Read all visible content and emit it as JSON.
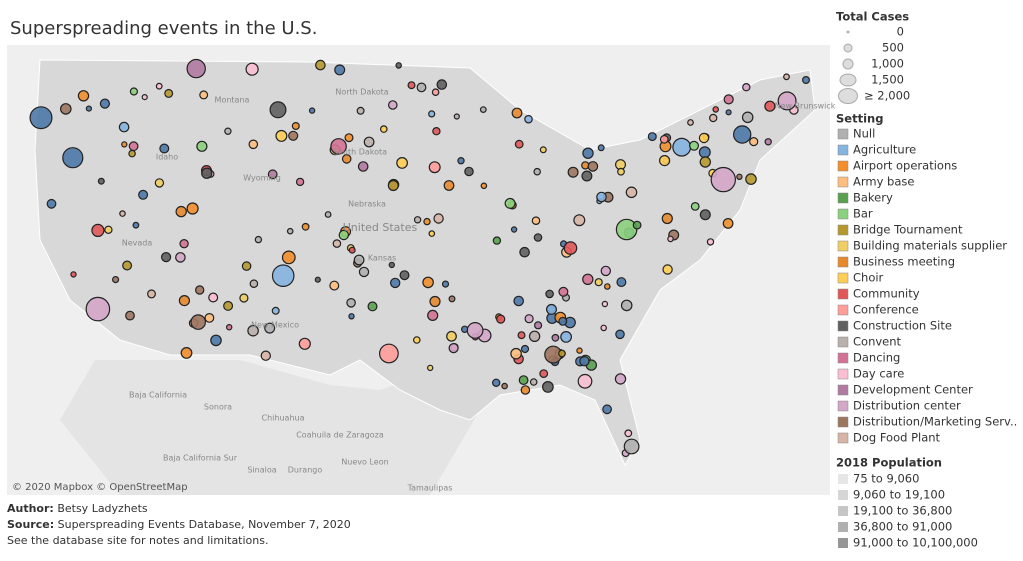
{
  "title": "Superspreading events in the U.S.",
  "map": {
    "labels": [
      "Montana",
      "North Dakota",
      "South Dakota",
      "Idaho",
      "Wyoming",
      "Nebraska",
      "United States",
      "Nevada",
      "Kansas",
      "New Mexico",
      "Baja California",
      "Sonora",
      "Chihuahua",
      "Coahuila de Zaragoza",
      "Nuevo Leon",
      "Baja California Sur",
      "Sinaloa",
      "Durango",
      "Tamaulipas",
      "New Brunswick"
    ],
    "attribution": "© 2020 Mapbox © OpenStreetMap"
  },
  "footer": {
    "author_label": "Author:",
    "author": "Betsy Ladyzhets",
    "source_label": "Source:",
    "source": "Superspreading Events Database, November 7, 2020",
    "note": "See the database site for notes and limitations."
  },
  "legend_size": {
    "title": "Total Cases",
    "items": [
      "0",
      "500",
      "1,000",
      "1,500",
      "≥ 2,000"
    ]
  },
  "legend_setting": {
    "title": "Setting",
    "items": [
      {
        "label": "Null",
        "color": "#b0b0b0"
      },
      {
        "label": "Agriculture",
        "color": "#86b4e0"
      },
      {
        "label": "Airport operations",
        "color": "#f28e2b"
      },
      {
        "label": "Army base",
        "color": "#ffbe7d"
      },
      {
        "label": "Bakery",
        "color": "#59a14f"
      },
      {
        "label": "Bar",
        "color": "#8cd17d"
      },
      {
        "label": "Bridge Tournament",
        "color": "#b6992d"
      },
      {
        "label": "Building materials supplier",
        "color": "#f1ce63"
      },
      {
        "label": "Business meeting",
        "color": "#e8892c"
      },
      {
        "label": "Choir",
        "color": "#ffce55"
      },
      {
        "label": "Community",
        "color": "#e15759"
      },
      {
        "label": "Conference",
        "color": "#ff9d9a"
      },
      {
        "label": "Construction Site",
        "color": "#606060"
      },
      {
        "label": "Convent",
        "color": "#bab0ac"
      },
      {
        "label": "Dancing",
        "color": "#d37295"
      },
      {
        "label": "Day care",
        "color": "#fabfd2"
      },
      {
        "label": "Development Center",
        "color": "#b07aa1"
      },
      {
        "label": "Distribution center",
        "color": "#d4a6c8"
      },
      {
        "label": "Distribution/Marketing Serv..",
        "color": "#9d7660"
      },
      {
        "label": "Dog Food Plant",
        "color": "#d7b5a6"
      }
    ]
  },
  "legend_population": {
    "title": "2018 Population",
    "items": [
      {
        "label": "75 to 9,060",
        "color": "#e6e6e6"
      },
      {
        "label": "9,060 to 19,100",
        "color": "#d6d6d6"
      },
      {
        "label": "19,100 to 36,800",
        "color": "#c6c6c6"
      },
      {
        "label": "36,800 to 91,000",
        "color": "#b0b0b0"
      },
      {
        "label": "91,000 to 10,100,000",
        "color": "#969696"
      }
    ]
  }
}
